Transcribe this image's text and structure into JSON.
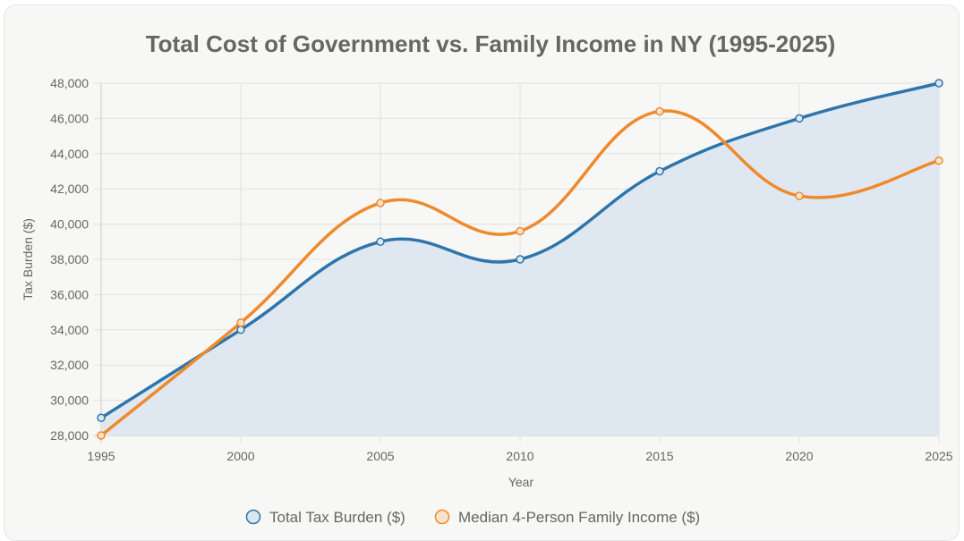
{
  "chart_data": {
    "type": "line",
    "title": "Total Cost of Government vs. Family Income in NY (1995-2025)",
    "xlabel": "Year",
    "ylabel": "Tax Burden ($)",
    "x": [
      1995,
      2000,
      2005,
      2010,
      2015,
      2020,
      2025
    ],
    "x_tick_labels": [
      "1995",
      "2000",
      "2005",
      "2010",
      "2015",
      "2020",
      "2025"
    ],
    "ylim": [
      28000,
      48000
    ],
    "y_ticks": [
      28000,
      30000,
      32000,
      34000,
      36000,
      38000,
      40000,
      42000,
      44000,
      46000,
      48000
    ],
    "y_tick_labels": [
      "28,000",
      "30,000",
      "32,000",
      "34,000",
      "36,000",
      "38,000",
      "40,000",
      "42,000",
      "44,000",
      "46,000",
      "48,000"
    ],
    "grid": true,
    "legend_position": "bottom",
    "series": [
      {
        "name": "Total Tax Burden ($)",
        "color": "#2e75ab",
        "fill": "#dfe8f0",
        "filled": true,
        "values": [
          29000,
          34000,
          39000,
          38000,
          43000,
          46000,
          48000
        ]
      },
      {
        "name": "Median 4-Person Family Income ($)",
        "color": "#ef8a2c",
        "filled": false,
        "values": [
          28000,
          34400,
          41200,
          39600,
          46400,
          41600,
          43600
        ]
      }
    ]
  }
}
